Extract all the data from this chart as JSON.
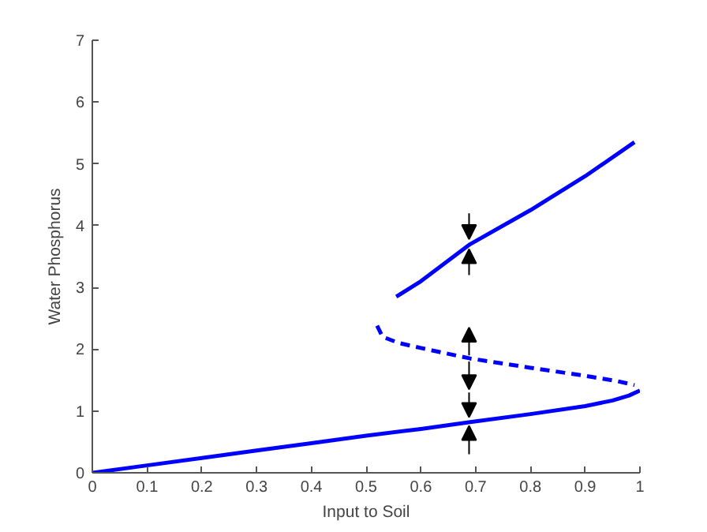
{
  "chart_data": {
    "type": "line",
    "xlabel": "Input to Soil",
    "ylabel": "Water Phosphorus",
    "xlim": [
      0,
      1
    ],
    "ylim": [
      0,
      7
    ],
    "xticks": [
      0,
      0.1,
      0.2,
      0.3,
      0.4,
      0.5,
      0.6,
      0.7,
      0.8,
      0.9,
      1
    ],
    "yticks": [
      0,
      1,
      2,
      3,
      4,
      5,
      6,
      7
    ],
    "grid": false,
    "marker": "none",
    "series": [
      {
        "color": "#0000ff",
        "line_style": "solid",
        "x": [
          0,
          0.1,
          0.2,
          0.3,
          0.4,
          0.5,
          0.6,
          0.69,
          0.8,
          0.9,
          0.95,
          0.98,
          1.0
        ],
        "values": [
          0,
          0.12,
          0.24,
          0.36,
          0.48,
          0.6,
          0.71,
          0.82,
          0.95,
          1.08,
          1.17,
          1.25,
          1.33
        ]
      },
      {
        "color": "#0000ff",
        "line_style": "dashed",
        "x": [
          0.52,
          0.53,
          0.56,
          0.6,
          0.69,
          0.8,
          0.9,
          0.96,
          0.99
        ],
        "values": [
          2.38,
          2.2,
          2.1,
          2.02,
          1.85,
          1.7,
          1.57,
          1.48,
          1.42
        ]
      },
      {
        "color": "#0000ff",
        "line_style": "solid",
        "x": [
          0.555,
          0.6,
          0.69,
          0.8,
          0.9,
          0.99
        ],
        "values": [
          2.85,
          3.1,
          3.7,
          4.25,
          4.8,
          5.35
        ]
      }
    ]
  }
}
